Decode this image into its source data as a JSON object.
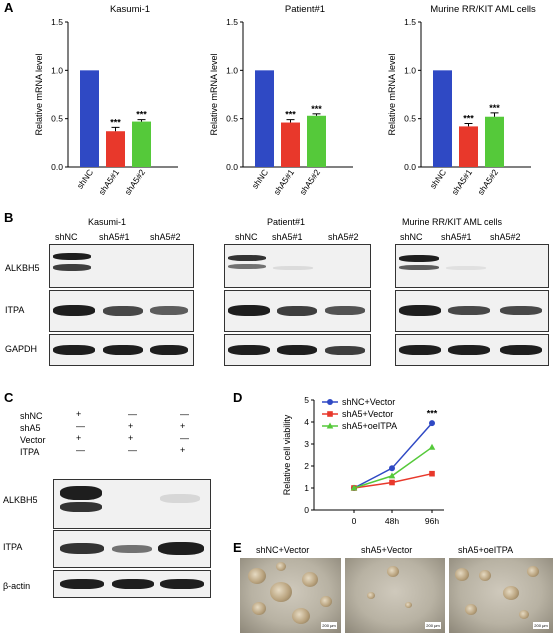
{
  "panel_labels": {
    "a": "A",
    "b": "B",
    "c": "C",
    "d": "D",
    "e": "E"
  },
  "chart_data": [
    {
      "type": "bar",
      "title": "Kasumi-1",
      "ylabel": "Relative mRNA level",
      "categories": [
        "shNC",
        "shA5#1",
        "shA5#2"
      ],
      "values": [
        1.0,
        0.37,
        0.47
      ],
      "errors": [
        0,
        0.04,
        0.02
      ],
      "significance": [
        "",
        "***",
        "***"
      ],
      "colors": [
        "#2f49c4",
        "#e8382b",
        "#55c93a"
      ],
      "ylim": [
        0,
        1.5
      ],
      "yticks": [
        "0.0",
        "0.5",
        "1.0",
        "1.5"
      ]
    },
    {
      "type": "bar",
      "title": "Patient#1",
      "ylabel": "Relative mRNA level",
      "categories": [
        "shNC",
        "shA5#1",
        "shA5#2"
      ],
      "values": [
        1.0,
        0.46,
        0.53
      ],
      "errors": [
        0,
        0.03,
        0.02
      ],
      "significance": [
        "",
        "***",
        "***"
      ],
      "colors": [
        "#2f49c4",
        "#e8382b",
        "#55c93a"
      ],
      "ylim": [
        0,
        1.5
      ],
      "yticks": [
        "0.0",
        "0.5",
        "1.0",
        "1.5"
      ]
    },
    {
      "type": "bar",
      "title": "Murine RR/KIT AML cells",
      "ylabel": "Relative mRNA level",
      "categories": [
        "shNC",
        "shA5#1",
        "shA5#2"
      ],
      "values": [
        1.0,
        0.42,
        0.52
      ],
      "errors": [
        0,
        0.03,
        0.04
      ],
      "significance": [
        "",
        "***",
        "***"
      ],
      "colors": [
        "#2f49c4",
        "#e8382b",
        "#55c93a"
      ],
      "ylim": [
        0,
        1.5
      ],
      "yticks": [
        "0.0",
        "0.5",
        "1.0",
        "1.5"
      ]
    },
    {
      "type": "line",
      "ylabel": "Relative cell viability",
      "x": [
        "0",
        "48h",
        "96h"
      ],
      "ylim": [
        0,
        5
      ],
      "yticks": [
        "0",
        "1",
        "2",
        "3",
        "4",
        "5"
      ],
      "legend_position": "top-left",
      "annotation": "***",
      "series": [
        {
          "name": "shNC+Vector",
          "values": [
            1.0,
            1.9,
            3.95
          ],
          "errors": [
            0.03,
            0.1,
            0.1
          ],
          "color": "#2f49c4",
          "marker": "circle"
        },
        {
          "name": "shA5+Vector",
          "values": [
            1.0,
            1.25,
            1.65
          ],
          "errors": [
            0.02,
            0.04,
            0.04
          ],
          "color": "#e8382b",
          "marker": "square"
        },
        {
          "name": "shA5+oeITPA",
          "values": [
            1.0,
            1.55,
            2.85
          ],
          "errors": [
            0.02,
            0.05,
            0.05
          ],
          "color": "#55c93a",
          "marker": "triangle"
        }
      ]
    }
  ],
  "panel_b": {
    "groups": [
      {
        "title": "Kasumi-1",
        "lanes": [
          "shNC",
          "shA5#1",
          "shA5#2"
        ]
      },
      {
        "title": "Patient#1",
        "lanes": [
          "shNC",
          "shA5#1",
          "shA5#2"
        ]
      },
      {
        "title": "Murine RR/KIT AML cells",
        "lanes": [
          "shNC",
          "shA5#1",
          "shA5#2"
        ]
      }
    ],
    "rows": [
      "ALKBH5",
      "ITPA",
      "GAPDH"
    ]
  },
  "panel_c": {
    "conditions": [
      {
        "label": "shNC",
        "signs": [
          "+",
          "—",
          "—"
        ]
      },
      {
        "label": "shA5",
        "signs": [
          "—",
          "+",
          "+"
        ]
      },
      {
        "label": "Vector",
        "signs": [
          "+",
          "+",
          "—"
        ]
      },
      {
        "label": "ITPA",
        "signs": [
          "—",
          "—",
          "+"
        ]
      }
    ],
    "rows": [
      "ALKBH5",
      "ITPA",
      "β-actin"
    ]
  },
  "panel_e": {
    "images": [
      {
        "title": "shNC+Vector",
        "scale": "200 μm"
      },
      {
        "title": "shA5+Vector",
        "scale": "200 μm"
      },
      {
        "title": "shA5+oeITPA",
        "scale": "200 μm"
      }
    ]
  }
}
